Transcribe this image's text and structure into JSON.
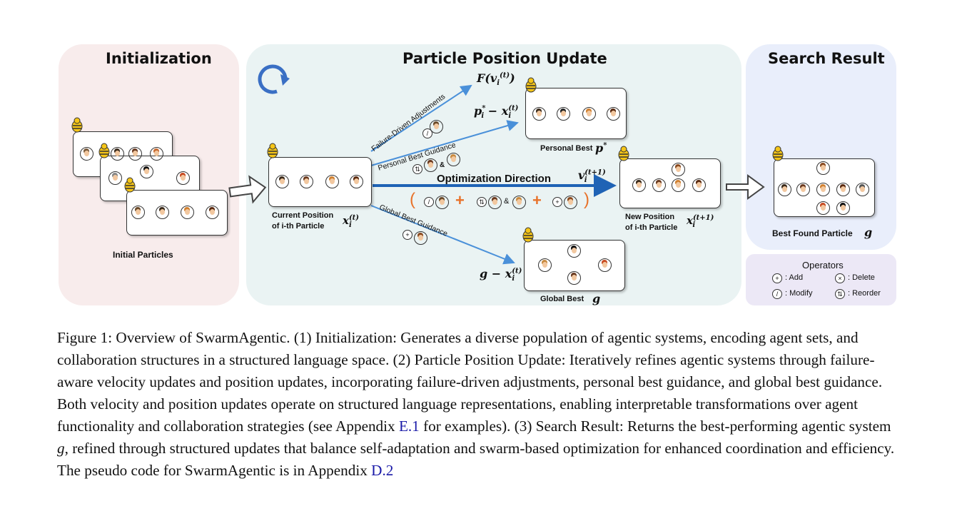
{
  "panels": {
    "initialization": "Initialization",
    "update": "Particle Position Update",
    "result": "Search Result"
  },
  "labels": {
    "initial_particles": "Initial Particles",
    "current_position_1": "Current Position",
    "current_position_2": "of i-th Particle",
    "new_position_1": "New Position",
    "new_position_2": "of i-th Particle",
    "personal_best": "Personal Best",
    "global_best": "Global Best",
    "best_found": "Best Found Particle",
    "failure_driven": "Failure-Driven Adjustments",
    "personal_guidance": "Personal Best Guidance",
    "global_guidance": "Global Best Guidance",
    "optimization_direction": "Optimization Direction"
  },
  "math": {
    "f_v": "F(v",
    "p_minus_x": "p",
    "g_minus_x": "g − x",
    "x_t": "x",
    "sup_t": "(t)",
    "sup_t1": "(t+1)",
    "sub_i": "i",
    "star": "*",
    "g": "g",
    "v": "v"
  },
  "operators": {
    "title": "Operators",
    "add_sym": "+",
    "add": ": Add",
    "delete_sym": "×",
    "delete": ": Delete",
    "modify_sym": "/",
    "modify": ": Modify",
    "reorder_sym": "⇅",
    "reorder": ": Reorder"
  },
  "formula_bar": {
    "open": "(",
    "close": ")",
    "plus": "+",
    "amp": "&"
  },
  "caption": {
    "p1": "Figure 1: Overview of SwarmAgentic. (1) Initialization: Generates a diverse population of agentic systems, encoding agent sets, and collaboration structures in a structured language space. (2) Particle Position Update: Iteratively refines agentic systems through failure-aware velocity updates and position updates, incorporating failure-driven adjustments, personal best guidance, and global best guidance. Both velocity and position updates operate on structured language representations, enabling interpretable transformations over agent functionality and collaboration strategies (see Appendix ",
    "link1": "E.1",
    "p2": " for examples). (3) Search Result: Returns the best-performing agentic system ",
    "g": "g",
    "p3": ", refined through structured updates that balance self-adaptation and swarm-based optimization for enhanced coordination and efficiency. The pseudo code for SwarmAgentic is in Appendix ",
    "link2": "D.2"
  },
  "colors": {
    "init_panel": "#f8ecec",
    "update_panel": "#eaf3f3",
    "result_panel": "#e9eefb",
    "operators_panel": "#ece8f6",
    "arrow_blue": "#4a90d9",
    "direction_blue": "#1f63b5",
    "formula_orange": "#e8722a"
  }
}
